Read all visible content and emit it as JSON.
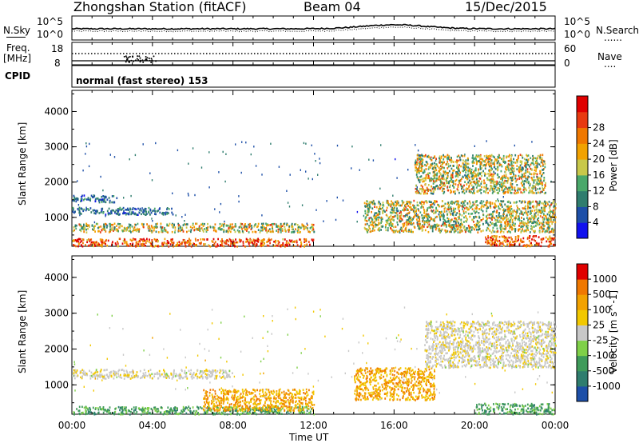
{
  "header": {
    "station": "Zhongshan Station (fitACF)",
    "beam": "Beam 04",
    "date": "15/Dec/2015"
  },
  "top_panel": {
    "left_label": "N.Sky",
    "left_ticks": [
      "10^5",
      "10^0"
    ],
    "right_ticks": [
      "10^5",
      "10^0"
    ],
    "right_legend": "N.Search",
    "right_legend_symbol": "......"
  },
  "freq_panel": {
    "left_label_1": "Freq.",
    "left_label_2": "[MHz]",
    "left_ticks": [
      "18",
      "8"
    ],
    "right_ticks": [
      "60",
      "0"
    ],
    "right_legend": "Nave",
    "right_legend_symbol": "...."
  },
  "cpid_panel": {
    "label": "CPID",
    "mode": "normal (fast stereo) 153"
  },
  "x_axis": {
    "label": "Time UT",
    "ticks": [
      "00:00",
      "04:00",
      "08:00",
      "12:00",
      "16:00",
      "20:00",
      "00:00"
    ]
  },
  "chart_data": [
    {
      "type": "heatmap",
      "quantity": "Power",
      "ylabel": "Slant Range [km]",
      "y_ticks": [
        "1000",
        "2000",
        "3000",
        "4000"
      ],
      "ylim": [
        180,
        4600
      ],
      "x_range_hours": [
        0,
        24
      ],
      "colorbar": {
        "label": "Power [dB]",
        "ticks": [
          "4",
          "8",
          "12",
          "16",
          "20",
          "24",
          "28"
        ],
        "colors": [
          "#1111ee",
          "#1d4fa8",
          "#2f7d6e",
          "#4aa86a",
          "#c8c84a",
          "#f2a200",
          "#f07800",
          "#e83a10",
          "#e00000"
        ]
      },
      "regions": [
        {
          "t": [
            0.0,
            12.0
          ],
          "r": [
            200,
            420
          ],
          "value": "high"
        },
        {
          "t": [
            0.0,
            12.0
          ],
          "r": [
            600,
            850
          ],
          "value": "mid"
        },
        {
          "t": [
            0.0,
            5.0
          ],
          "r": [
            1100,
            1300
          ],
          "value": "low"
        },
        {
          "t": [
            0.0,
            2.2
          ],
          "r": [
            1450,
            1650
          ],
          "value": "low"
        },
        {
          "t": [
            14.5,
            24.0
          ],
          "r": [
            600,
            1500
          ],
          "value": "mid"
        },
        {
          "t": [
            17.0,
            23.5
          ],
          "r": [
            1700,
            2800
          ],
          "value": "mid"
        },
        {
          "t": [
            20.5,
            24.0
          ],
          "r": [
            200,
            500
          ],
          "value": "high"
        }
      ]
    },
    {
      "type": "heatmap",
      "quantity": "Velocity",
      "ylabel": "Slant Range [km]",
      "y_ticks": [
        "1000",
        "2000",
        "3000",
        "4000"
      ],
      "ylim": [
        180,
        4600
      ],
      "x_range_hours": [
        0,
        24
      ],
      "colorbar": {
        "label": "Velocity [m s^-1]",
        "ticks": [
          "1000",
          "500",
          "100",
          "25",
          "-25",
          "-100",
          "-500",
          "-1000"
        ],
        "colors": [
          "#1d4fa8",
          "#2f7d6e",
          "#3f9b5a",
          "#7fd048",
          "#c8c8c8",
          "#f2c800",
          "#f2a200",
          "#f07800",
          "#e00000"
        ]
      },
      "regions": [
        {
          "t": [
            0.0,
            12.0
          ],
          "r": [
            200,
            420
          ],
          "value": "green"
        },
        {
          "t": [
            6.5,
            12.0
          ],
          "r": [
            300,
            900
          ],
          "value": "orange"
        },
        {
          "t": [
            0.0,
            8.0
          ],
          "r": [
            1200,
            1450
          ],
          "value": "gray"
        },
        {
          "t": [
            14.0,
            18.0
          ],
          "r": [
            600,
            1500
          ],
          "value": "orange"
        },
        {
          "t": [
            17.5,
            24.0
          ],
          "r": [
            1500,
            2800
          ],
          "value": "gray"
        },
        {
          "t": [
            20.0,
            24.0
          ],
          "r": [
            200,
            500
          ],
          "value": "green"
        }
      ]
    }
  ]
}
